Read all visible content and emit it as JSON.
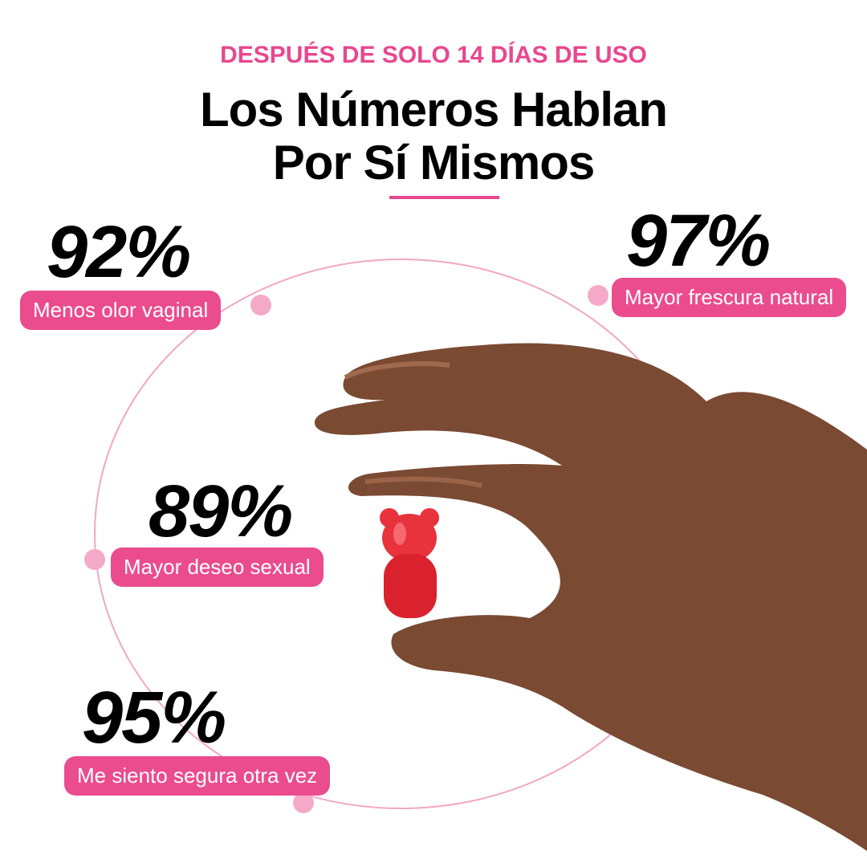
{
  "header": {
    "eyebrow": "DESPUÉS DE SOLO 14 DÍAS DE USO",
    "title_lines": [
      "Los Números Hablan",
      "Por Sí Mismos"
    ]
  },
  "stats": [
    {
      "value": "92%",
      "label": "Menos olor vaginal"
    },
    {
      "value": "97%",
      "label": "Mayor frescura natural"
    },
    {
      "value": "89%",
      "label": "Mayor deseo sexual"
    },
    {
      "value": "95%",
      "label": "Me siento segura otra vez"
    }
  ]
}
